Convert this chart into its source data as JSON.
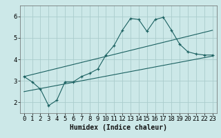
{
  "title": "",
  "xlabel": "Humidex (Indice chaleur)",
  "bg_color": "#cce8e8",
  "grid_color": "#aacccc",
  "line_color": "#1a6060",
  "xlim": [
    -0.5,
    23.5
  ],
  "ylim": [
    1.5,
    6.5
  ],
  "xticks": [
    0,
    1,
    2,
    3,
    4,
    5,
    6,
    7,
    8,
    9,
    10,
    11,
    12,
    13,
    14,
    15,
    16,
    17,
    18,
    19,
    20,
    21,
    22,
    23
  ],
  "yticks": [
    2,
    3,
    4,
    5,
    6
  ],
  "main_x": [
    0,
    1,
    2,
    3,
    4,
    5,
    6,
    7,
    8,
    9,
    10,
    11,
    12,
    13,
    14,
    15,
    16,
    17,
    18,
    19,
    20,
    21,
    22,
    23
  ],
  "main_y": [
    3.2,
    2.95,
    2.62,
    1.85,
    2.1,
    2.95,
    2.95,
    3.2,
    3.35,
    3.55,
    4.2,
    4.65,
    5.35,
    5.9,
    5.85,
    5.3,
    5.85,
    5.95,
    5.35,
    4.7,
    4.35,
    4.25,
    4.2,
    4.2
  ],
  "upper_line_x": [
    0,
    23
  ],
  "upper_line_y": [
    3.2,
    5.35
  ],
  "lower_line_x": [
    0,
    23
  ],
  "lower_line_y": [
    2.5,
    4.15
  ],
  "font_size": 6.5
}
